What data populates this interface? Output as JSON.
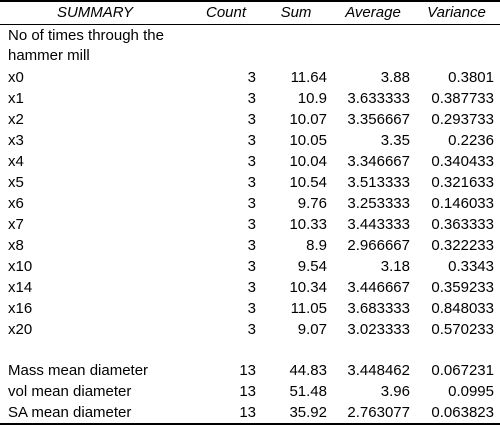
{
  "table": {
    "headers": [
      "SUMMARY",
      "Count",
      "Sum",
      "Average",
      "Variance"
    ],
    "description": "No of times through the hammer mill",
    "rows": [
      {
        "label": "x0",
        "count": "3",
        "sum": "11.64",
        "average": "3.88",
        "variance": "0.3801"
      },
      {
        "label": "x1",
        "count": "3",
        "sum": "10.9",
        "average": "3.633333",
        "variance": "0.387733"
      },
      {
        "label": "x2",
        "count": "3",
        "sum": "10.07",
        "average": "3.356667",
        "variance": "0.293733"
      },
      {
        "label": "x3",
        "count": "3",
        "sum": "10.05",
        "average": "3.35",
        "variance": "0.2236"
      },
      {
        "label": "x4",
        "count": "3",
        "sum": "10.04",
        "average": "3.346667",
        "variance": "0.340433"
      },
      {
        "label": "x5",
        "count": "3",
        "sum": "10.54",
        "average": "3.513333",
        "variance": "0.321633"
      },
      {
        "label": "x6",
        "count": "3",
        "sum": "9.76",
        "average": "3.253333",
        "variance": "0.146033"
      },
      {
        "label": "x7",
        "count": "3",
        "sum": "10.33",
        "average": "3.443333",
        "variance": "0.363333"
      },
      {
        "label": "x8",
        "count": "3",
        "sum": "8.9",
        "average": "2.966667",
        "variance": "0.322233"
      },
      {
        "label": "x10",
        "count": "3",
        "sum": "9.54",
        "average": "3.18",
        "variance": "0.3343"
      },
      {
        "label": "x14",
        "count": "3",
        "sum": "10.34",
        "average": "3.446667",
        "variance": "0.359233"
      },
      {
        "label": "x16",
        "count": "3",
        "sum": "11.05",
        "average": "3.683333",
        "variance": "0.848033"
      },
      {
        "label": "x20",
        "count": "3",
        "sum": "9.07",
        "average": "3.023333",
        "variance": "0.570233"
      }
    ],
    "summary_rows": [
      {
        "label": "Mass mean diameter",
        "count": "13",
        "sum": "44.83",
        "average": "3.448462",
        "variance": "0.067231"
      },
      {
        "label": "vol mean diameter",
        "count": "13",
        "sum": "51.48",
        "average": "3.96",
        "variance": "0.0995"
      },
      {
        "label": "SA mean diameter",
        "count": "13",
        "sum": "35.92",
        "average": "2.763077",
        "variance": "0.063823"
      }
    ]
  }
}
